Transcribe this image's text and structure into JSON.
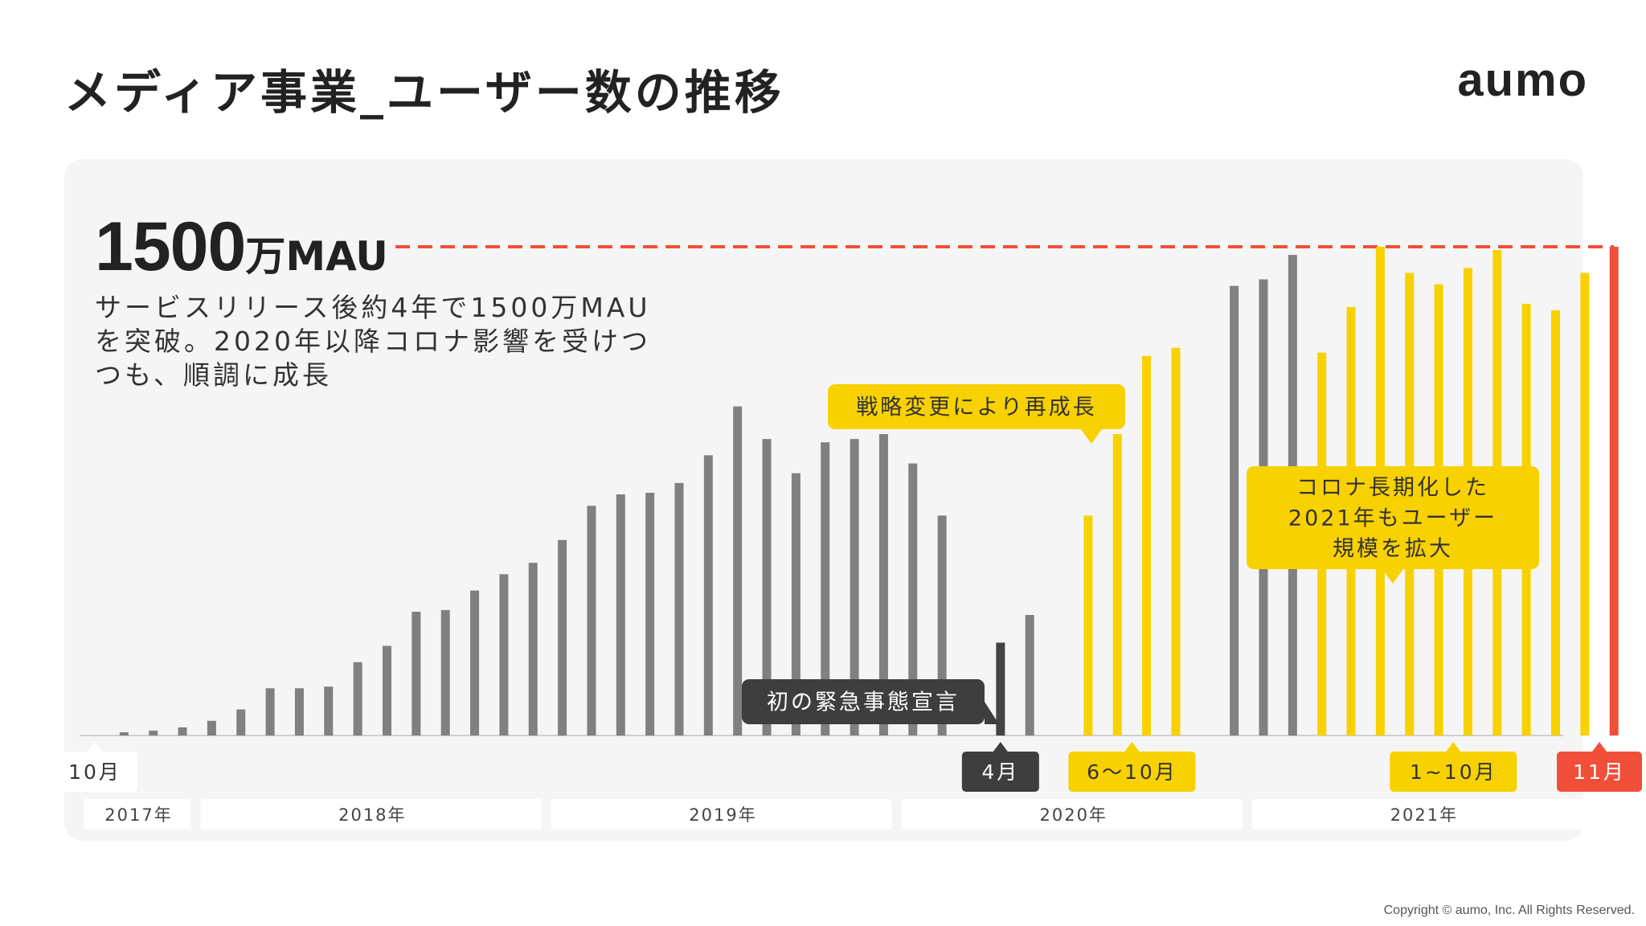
{
  "header": {
    "title": "メディア事業_ユーザー数の推移",
    "logo": "aumo"
  },
  "summary": {
    "mau_value": "1500",
    "mau_unit": "万MAU",
    "description": "サービスリリース後約4年で1500万MAUを突破。2020年以降コロナ影響を受けつつも、順調に成長"
  },
  "footer": {
    "copyright": "Copyright © aumo, Inc. All Rights Reserved."
  },
  "chart_data": {
    "type": "bar",
    "title": "",
    "xlabel": "",
    "ylabel": "",
    "ylim": [
      0,
      1500
    ],
    "target_value": 1500,
    "target_line": "dashed",
    "grid": false,
    "values": [
      0,
      10,
      15,
      25,
      45,
      80,
      145,
      145,
      150,
      225,
      275,
      380,
      385,
      445,
      495,
      530,
      600,
      705,
      740,
      745,
      775,
      860,
      1010,
      910,
      805,
      900,
      910,
      925,
      835,
      675,
      0,
      285,
      370,
      0,
      675,
      925,
      1165,
      1190,
      0,
      1380,
      1400,
      1475,
      1175,
      1315,
      1500,
      1420,
      1385,
      1435,
      1490,
      1325,
      1305,
      1420,
      1500
    ],
    "bar_colors": [
      "#808080",
      "#808080",
      "#808080",
      "#808080",
      "#808080",
      "#808080",
      "#808080",
      "#808080",
      "#808080",
      "#808080",
      "#808080",
      "#808080",
      "#808080",
      "#808080",
      "#808080",
      "#808080",
      "#808080",
      "#808080",
      "#808080",
      "#808080",
      "#808080",
      "#808080",
      "#808080",
      "#808080",
      "#808080",
      "#808080",
      "#808080",
      "#808080",
      "#808080",
      "#808080",
      "#808080",
      "#444444",
      "#808080",
      "#808080",
      "#f8d100",
      "#f8d100",
      "#f8d100",
      "#f8d100",
      "#808080",
      "#808080",
      "#808080",
      "#808080",
      "#f8d100",
      "#f8d100",
      "#f8d100",
      "#f8d100",
      "#f8d100",
      "#f8d100",
      "#f8d100",
      "#f8d100",
      "#f8d100",
      "#f8d100",
      "#f8d100"
    ],
    "target_color": "#f14f39",
    "month_labels": [
      {
        "text": "10月",
        "index": 0,
        "style": "white"
      },
      {
        "text": "4月",
        "index": 31,
        "style": "dark"
      },
      {
        "text": "6〜10月",
        "index": 35.5,
        "style": "yellow"
      },
      {
        "text": "1~10月",
        "index": 46.5,
        "style": "yellow"
      },
      {
        "text": "11月",
        "index": 51.5,
        "style": "red"
      }
    ],
    "years": [
      {
        "label": "2017年",
        "start": 0,
        "end": 3
      },
      {
        "label": "2018年",
        "start": 4,
        "end": 15
      },
      {
        "label": "2019年",
        "start": 16,
        "end": 27
      },
      {
        "label": "2020年",
        "start": 28,
        "end": 39
      },
      {
        "label": "2021年",
        "start": 40,
        "end": 51
      }
    ],
    "annotations": [
      {
        "text": "戦略変更により再成長",
        "style": "yellow",
        "anchor_index": 35.5
      },
      {
        "text": "コロナ長期化した\n2021年もユーザー\n規模を拡大",
        "style": "yellow",
        "anchor_index": 46.5
      },
      {
        "text": "初の緊急事態宣言",
        "style": "dark",
        "anchor_index": 31
      }
    ]
  }
}
